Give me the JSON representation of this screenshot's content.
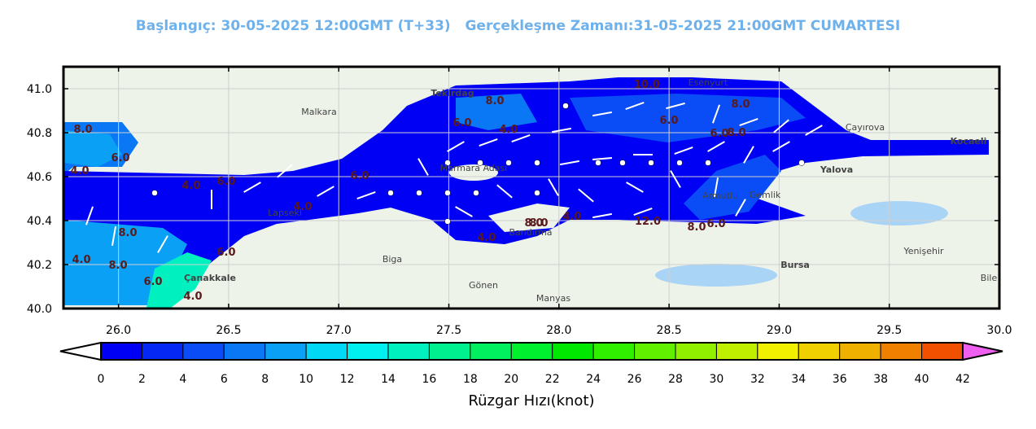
{
  "header": {
    "title_left": "Başlangıç: 30-05-2025 12:00GMT (T+33)",
    "title_right": "Gerçekleşme Zamanı:31-05-2025 21:00GMT CUMARTESI"
  },
  "chart_data": {
    "type": "heatmap",
    "title": "Başlangıç: 30-05-2025 12:00GMT (T+33)   Gerçekleşme Zamanı:31-05-2025 21:00GMT CUMARTESI",
    "xlim": [
      25.75,
      30.0
    ],
    "ylim": [
      40.0,
      41.1
    ],
    "x_ticks": [
      "26.0",
      "26.5",
      "27.0",
      "27.5",
      "28.0",
      "28.5",
      "29.0",
      "29.5",
      "30.0"
    ],
    "y_ticks": [
      "40.0",
      "40.2",
      "40.4",
      "40.6",
      "40.8",
      "41.0"
    ],
    "contour_labels": [
      "8.0",
      "6.0",
      "4.0",
      "8.0",
      "6.0",
      "4.0",
      "8.0",
      "6.0",
      "8.0",
      "6.0",
      "4.0",
      "6.0",
      "4.0",
      "8.0",
      "6.0",
      "4.0",
      "8.0",
      "6.0",
      "4.0",
      "8.0",
      "6.0",
      "4.0",
      "8.0",
      "4.0",
      "12.0",
      "10.0",
      "6.0",
      "8.0"
    ],
    "place_names": [
      "Tekirdağ",
      "Malkara",
      "Esenyurt",
      "Çayırova",
      "Kocaeli",
      "Yalova",
      "Gemlik",
      "Bursa",
      "Bandırma",
      "Biga",
      "Gönen",
      "Çanakkale",
      "Manyas",
      "Yenişehir",
      "Bile",
      "Armutlu",
      "Lapseki",
      "Marmara Adası"
    ],
    "colorbar": {
      "label": "Rüzgar Hızı(knot)",
      "ticks": [
        "0",
        "2",
        "4",
        "6",
        "8",
        "10",
        "12",
        "14",
        "16",
        "18",
        "20",
        "22",
        "24",
        "26",
        "28",
        "30",
        "32",
        "34",
        "36",
        "38",
        "40",
        "42"
      ],
      "colors": [
        "#0000f5",
        "#0528f5",
        "#0a4cf5",
        "#0a78f5",
        "#0aa0f5",
        "#00d8f5",
        "#00f0f0",
        "#00f0c0",
        "#00f090",
        "#00f060",
        "#00f030",
        "#00e800",
        "#30f000",
        "#60f000",
        "#90f000",
        "#c0f000",
        "#f0f000",
        "#f0d000",
        "#f0b000",
        "#f08000",
        "#f05000",
        "#f02000",
        "#f00000"
      ],
      "extend_max_color": "#f060f0",
      "extend_min_color": "#ffffff"
    }
  }
}
